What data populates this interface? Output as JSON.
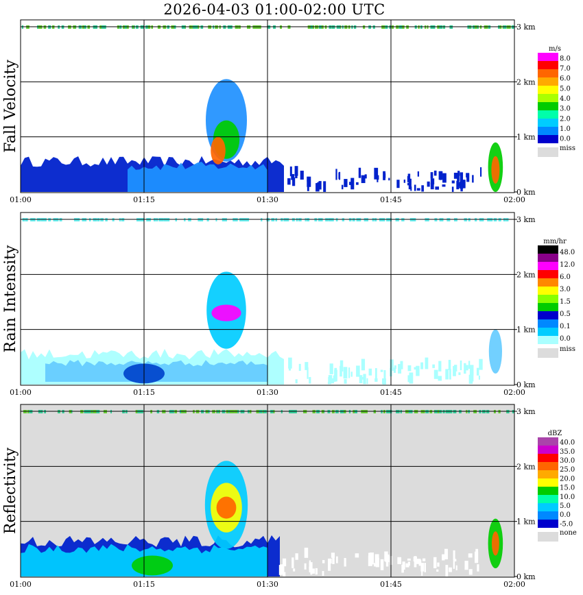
{
  "title": "2026-04-03   01:00-02:00 UTC",
  "colors": {
    "background": "#ffffff",
    "missing": "#dcdcdc",
    "grid": "#000000"
  },
  "chart_data": [
    {
      "type": "heatmap",
      "ylabel": "Fall Velocity",
      "x_ticks": [
        "01:00",
        "01:15",
        "01:30",
        "01:45",
        "02:00"
      ],
      "y_ticks": [
        "0 km",
        "1 km",
        "2 km",
        "3 km"
      ],
      "ylim_km": [
        0,
        3
      ],
      "background": "white",
      "colorbar": {
        "unit": "m/s",
        "labels": [
          "8.0",
          "7.0",
          "6.0",
          "5.0",
          "4.0",
          "3.0",
          "2.0",
          "1.0",
          "0.0"
        ],
        "colors": [
          "#ff00ff",
          "#ff0000",
          "#ff6600",
          "#ffaa00",
          "#ffff00",
          "#aaff00",
          "#00cc00",
          "#00ffaa",
          "#00ccff",
          "#0088ff",
          "#0000cc"
        ],
        "missing_label": "miss"
      },
      "features": [
        {
          "kind": "layer",
          "t0": 0,
          "t1": 32,
          "h0": 0,
          "h1": 0.65,
          "color": "#0022cc"
        },
        {
          "kind": "layer",
          "t0": 13,
          "t1": 30,
          "h0": 0,
          "h1": 0.55,
          "color": "#1e90ff"
        },
        {
          "kind": "cell",
          "t": 25,
          "h": 1.3,
          "w": 2.5,
          "hh": 0.75,
          "color": "#1e90ff"
        },
        {
          "kind": "cell",
          "t": 25,
          "h": 0.95,
          "w": 1.6,
          "hh": 0.35,
          "color": "#00cc00"
        },
        {
          "kind": "cell",
          "t": 24,
          "h": 0.75,
          "w": 0.9,
          "hh": 0.25,
          "color": "#ff6600"
        },
        {
          "kind": "cell",
          "t": 57.7,
          "h": 0.45,
          "w": 0.9,
          "hh": 0.45,
          "color": "#00cc00"
        },
        {
          "kind": "cell",
          "t": 57.7,
          "h": 0.4,
          "w": 0.5,
          "hh": 0.25,
          "color": "#ff6600"
        },
        {
          "kind": "sparse",
          "t0": 32,
          "t1": 56,
          "h0": 0,
          "h1": 0.3,
          "color": "#0022cc"
        }
      ]
    },
    {
      "type": "heatmap",
      "ylabel": "Rain Intensity",
      "x_ticks": [
        "01:00",
        "01:15",
        "01:30",
        "01:45",
        "02:00"
      ],
      "y_ticks": [
        "0 km",
        "1 km",
        "2 km",
        "3 km"
      ],
      "ylim_km": [
        0,
        3
      ],
      "background": "white",
      "colorbar": {
        "unit": "mm/hr",
        "labels": [
          "48.0",
          "12.0",
          "6.0",
          "3.0",
          "1.5",
          "0.5",
          "0.1",
          "0.0"
        ],
        "colors": [
          "#000000",
          "#880088",
          "#ff00ff",
          "#ff0000",
          "#ff8800",
          "#ffff00",
          "#88ff00",
          "#00cc00",
          "#0000cc",
          "#0088ff",
          "#00ccff",
          "#aaffff"
        ],
        "missing_label": "miss"
      },
      "features": [
        {
          "kind": "layer",
          "t0": 0,
          "t1": 32,
          "h0": 0,
          "h1": 0.65,
          "color": "#aaffff"
        },
        {
          "kind": "layer",
          "t0": 3,
          "t1": 30,
          "h0": 0.05,
          "h1": 0.45,
          "color": "#66ccff"
        },
        {
          "kind": "cell",
          "t": 15,
          "h": 0.2,
          "w": 2.5,
          "hh": 0.18,
          "color": "#0044cc"
        },
        {
          "kind": "cell",
          "t": 25,
          "h": 1.35,
          "w": 2.4,
          "hh": 0.7,
          "color": "#00ccff"
        },
        {
          "kind": "cell",
          "t": 25,
          "h": 1.3,
          "w": 1.8,
          "hh": 0.15,
          "color": "#ff00ff"
        },
        {
          "kind": "cell",
          "t": 57.7,
          "h": 0.6,
          "w": 0.8,
          "hh": 0.4,
          "color": "#66ccff"
        },
        {
          "kind": "sparse",
          "t0": 32,
          "t1": 56,
          "h0": 0,
          "h1": 0.3,
          "color": "#aaffff"
        }
      ]
    },
    {
      "type": "heatmap",
      "ylabel": "Reflectivity",
      "x_ticks": [
        "01:00",
        "01:15",
        "01:30",
        "01:45",
        "02:00"
      ],
      "y_ticks": [
        "0 km",
        "1 km",
        "2 km",
        "3 km"
      ],
      "ylim_km": [
        0,
        3
      ],
      "background": "gray",
      "colorbar": {
        "unit": "dBZ",
        "labels": [
          "40.0",
          "35.0",
          "30.0",
          "25.0",
          "20.0",
          "15.0",
          "10.0",
          "5.0",
          "0.0",
          "-5.0"
        ],
        "colors": [
          "#aa44aa",
          "#cc00cc",
          "#ff0000",
          "#ff6600",
          "#ffaa00",
          "#ffff00",
          "#00cc00",
          "#00ffaa",
          "#00ccff",
          "#0088ff",
          "#0000cc"
        ],
        "missing_label": "none"
      },
      "features": [
        {
          "kind": "layer",
          "t0": 0,
          "t1": 31.5,
          "h0": 0,
          "h1": 0.75,
          "color": "#0022cc"
        },
        {
          "kind": "layer",
          "t0": 0,
          "t1": 30,
          "h0": 0,
          "h1": 0.6,
          "color": "#00ccff"
        },
        {
          "kind": "cell",
          "t": 16,
          "h": 0.2,
          "w": 2.5,
          "hh": 0.18,
          "color": "#00cc00"
        },
        {
          "kind": "cell",
          "t": 25,
          "h": 1.3,
          "w": 2.6,
          "hh": 0.8,
          "color": "#00ccff"
        },
        {
          "kind": "cell",
          "t": 25,
          "h": 1.25,
          "w": 1.9,
          "hh": 0.45,
          "color": "#ffff00"
        },
        {
          "kind": "cell",
          "t": 25,
          "h": 1.25,
          "w": 1.2,
          "hh": 0.2,
          "color": "#ff6600"
        },
        {
          "kind": "cell",
          "t": 57.7,
          "h": 0.6,
          "w": 0.9,
          "hh": 0.45,
          "color": "#00cc00"
        },
        {
          "kind": "cell",
          "t": 57.7,
          "h": 0.6,
          "w": 0.45,
          "hh": 0.22,
          "color": "#ff6600"
        },
        {
          "kind": "sparse",
          "t0": 31,
          "t1": 56,
          "h0": 0,
          "h1": 0.35,
          "color": "#ffffff"
        }
      ]
    }
  ]
}
